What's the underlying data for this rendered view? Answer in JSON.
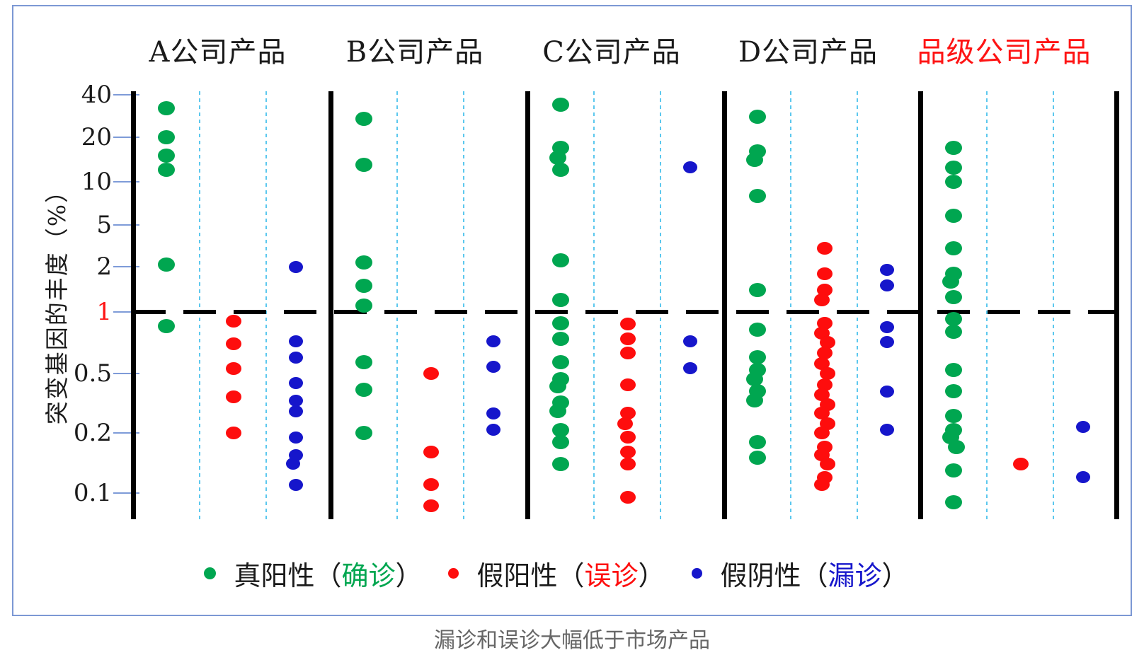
{
  "caption": "漏诊和误诊大幅低于市场产品",
  "frame_border_color": "#7c98d4",
  "chart_data": {
    "type": "scatter",
    "yscale": "log",
    "ylabel": "突变基因的丰度（%）",
    "y_ticks": [
      40,
      20,
      10,
      5,
      2,
      1,
      0.5,
      0.2,
      0.1
    ],
    "y_tick_labels": [
      "40",
      "20",
      "10",
      "5",
      "2",
      "1",
      "0.5",
      "0.2",
      "0.1"
    ],
    "highlighted_tick": "1",
    "highlighted_tick_color": "#fe1414",
    "reference_line_value": 1,
    "grid": "vertical-dashed",
    "colors": {
      "true_positive": "#00a650",
      "false_positive": "#fe0d0d",
      "false_negative": "#1616cb",
      "axis": "#000000",
      "tick_line": "#7e9bd8",
      "grid_dashed": "#5cc8ee"
    },
    "panels": [
      {
        "label": "A公司产品",
        "label_color": "#1a1a1a",
        "series": {
          "true_positive": [
            32,
            20,
            15,
            12,
            2.1,
            0.85
          ],
          "false_positive": [
            0.9,
            0.7,
            0.53,
            0.35,
            0.2
          ],
          "false_negative": [
            2.0,
            0.72,
            0.6,
            0.43,
            0.33,
            0.28,
            0.19,
            0.155,
            0.14,
            0.11
          ]
        }
      },
      {
        "label": "B公司产品",
        "label_color": "#1a1a1a",
        "series": {
          "true_positive": [
            27,
            13,
            2.2,
            1.5,
            1.1,
            0.57,
            0.39,
            0.2
          ],
          "false_positive": [
            0.5,
            0.16,
            0.11,
            0.086
          ],
          "false_negative": [
            0.72,
            0.54,
            0.27,
            0.21
          ]
        }
      },
      {
        "label": "C公司产品",
        "label_color": "#1a1a1a",
        "series": {
          "true_positive": [
            34,
            17,
            14.5,
            12,
            2.3,
            1.2,
            0.88,
            0.74,
            0.57,
            0.46,
            0.41,
            0.32,
            0.28,
            0.21,
            0.18,
            0.14
          ],
          "false_positive": [
            0.87,
            0.74,
            0.63,
            0.42,
            0.27,
            0.23,
            0.19,
            0.16,
            0.14,
            0.095
          ],
          "false_negative": [
            12.5,
            0.72,
            0.53
          ]
        }
      },
      {
        "label": "D公司产品",
        "label_color": "#1a1a1a",
        "series": {
          "true_positive": [
            28,
            16,
            14,
            8,
            1.4,
            0.82,
            0.6,
            0.52,
            0.46,
            0.38,
            0.33,
            0.18,
            0.15
          ],
          "false_positive": [
            3.0,
            1.8,
            1.4,
            1.2,
            0.88,
            0.79,
            0.71,
            0.63,
            0.56,
            0.5,
            0.42,
            0.36,
            0.31,
            0.27,
            0.23,
            0.2,
            0.17,
            0.155,
            0.14,
            0.12,
            0.11
          ],
          "false_negative": [
            1.9,
            1.5,
            0.84,
            0.71,
            0.38,
            0.21
          ]
        }
      },
      {
        "label": "品级公司产品",
        "label_color": "#fe1414",
        "series": {
          "true_positive": [
            17,
            12.5,
            10,
            5.8,
            3.0,
            1.8,
            1.6,
            1.25,
            0.92,
            0.8,
            0.52,
            0.38,
            0.26,
            0.21,
            0.19,
            0.17,
            0.13,
            0.09
          ],
          "false_positive": [
            0.14
          ],
          "false_negative": [
            0.22,
            0.12
          ]
        }
      }
    ],
    "legend": [
      {
        "prefix": "真阳性（",
        "sub": "确诊",
        "suffix": "）",
        "marker_color": "#00a650",
        "sub_color": "#00a650"
      },
      {
        "prefix": "假阳性（",
        "sub": "误诊",
        "suffix": "）",
        "marker_color": "#fe0d0d",
        "sub_color": "#fe0d0d"
      },
      {
        "prefix": "假阴性（",
        "sub": "漏诊",
        "suffix": "）",
        "marker_color": "#1616cb",
        "sub_color": "#1616cb"
      }
    ]
  }
}
